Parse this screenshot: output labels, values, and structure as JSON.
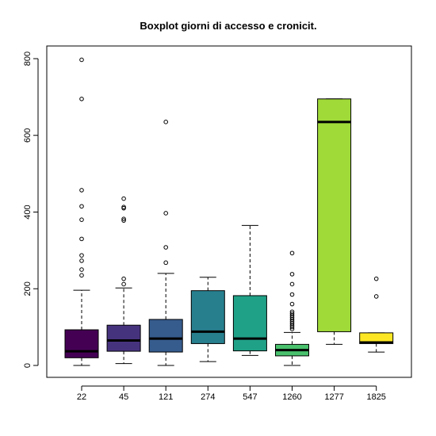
{
  "chart_data": {
    "type": "boxplot",
    "title": "Boxplot giorni di accesso e cronicit.",
    "xlabel": "",
    "ylabel": "",
    "ylim": [
      -30,
      830
    ],
    "yticks": [
      0,
      200,
      400,
      600,
      800
    ],
    "yticklabels": [
      "0",
      "200",
      "400",
      "600",
      "800"
    ],
    "categories": [
      "22",
      "45",
      "121",
      "274",
      "547",
      "1260",
      "1277",
      "1825"
    ],
    "colors": [
      "#440154",
      "#46337E",
      "#365C8D",
      "#277F8E",
      "#1FA187",
      "#4AC16D",
      "#A0DA39",
      "#FDE725"
    ],
    "boxes": [
      {
        "category": "22",
        "whisker_low": 0,
        "q1": 20,
        "median": 37,
        "q3": 93,
        "whisker_high": 196,
        "outliers": [
          235,
          250,
          273,
          287,
          330,
          380,
          415,
          457,
          695,
          797
        ]
      },
      {
        "category": "45",
        "whisker_low": 5,
        "q1": 37,
        "median": 65,
        "q3": 105,
        "whisker_high": 202,
        "outliers": [
          212,
          226,
          378,
          382,
          410,
          413,
          435
        ]
      },
      {
        "category": "121",
        "whisker_low": 0,
        "q1": 35,
        "median": 70,
        "q3": 120,
        "whisker_high": 240,
        "outliers": [
          268,
          308,
          397,
          635
        ]
      },
      {
        "category": "274",
        "whisker_low": 10,
        "q1": 57,
        "median": 88,
        "q3": 195,
        "whisker_high": 230,
        "outliers": []
      },
      {
        "category": "547",
        "whisker_low": 26,
        "q1": 38,
        "median": 70,
        "q3": 182,
        "whisker_high": 365,
        "outliers": []
      },
      {
        "category": "1260",
        "whisker_low": 0,
        "q1": 25,
        "median": 40,
        "q3": 55,
        "whisker_high": 86,
        "outliers": [
          95,
          100,
          105,
          110,
          115,
          120,
          125,
          130,
          135,
          140,
          160,
          185,
          212,
          238,
          293
        ]
      },
      {
        "category": "1277",
        "whisker_low": 55,
        "q1": 88,
        "median": 635,
        "q3": 695,
        "whisker_high": 695,
        "outliers": []
      },
      {
        "category": "1825",
        "whisker_low": 35,
        "q1": 57,
        "median": 60,
        "q3": 85,
        "whisker_high": 85,
        "outliers": [
          180,
          226
        ]
      }
    ]
  }
}
